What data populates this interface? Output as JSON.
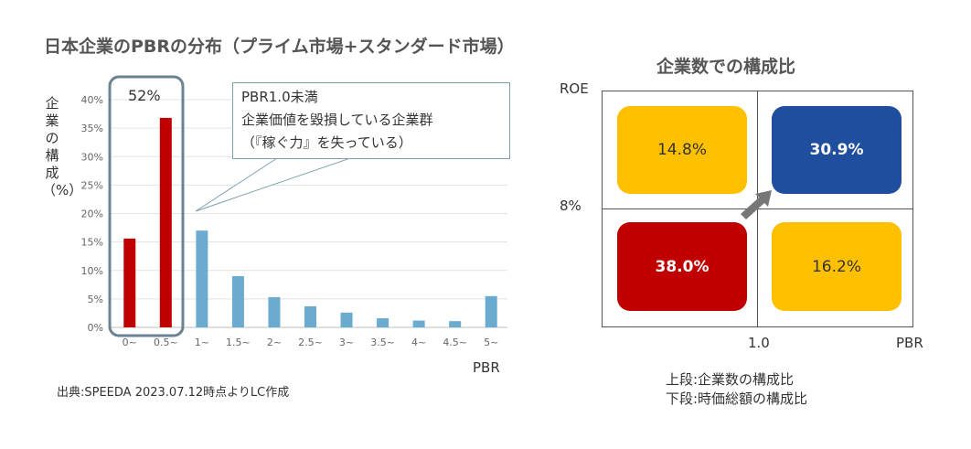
{
  "title": "日本企業のPBRの分布（プライム市場+スタンダード市場）",
  "source": "出典:SPEEDA 2023.07.12時点よりLC作成",
  "highlight": {
    "label": "52%"
  },
  "callout": {
    "line1": "PBR1.0未満",
    "line2": "企業価値を毀損している企業群",
    "line3": "（『稼ぐ力』を失っている）"
  },
  "chart_data": {
    "type": "bar",
    "categories": [
      "0~",
      "0.5~",
      "1~",
      "1.5~",
      "2~",
      "2.5~",
      "3~",
      "3.5~",
      "4~",
      "4.5~",
      "5~"
    ],
    "values": [
      15.6,
      36.8,
      17.0,
      9.0,
      5.3,
      3.7,
      2.6,
      1.6,
      1.2,
      1.1,
      5.5
    ],
    "bar_colors": [
      "#c00000",
      "#c00000",
      "#6aabcf",
      "#6aabcf",
      "#6aabcf",
      "#6aabcf",
      "#6aabcf",
      "#6aabcf",
      "#6aabcf",
      "#6aabcf",
      "#6aabcf"
    ],
    "xlabel": "PBR",
    "ylabel": "企業の構成（%）",
    "ylim": [
      0,
      40
    ],
    "yticks": [
      "0%",
      "5%",
      "10%",
      "15%",
      "20%",
      "25%",
      "30%",
      "35%",
      "40%"
    ],
    "grid": true
  },
  "matrix": {
    "title": "企業数での構成比",
    "y_axis_label": "ROE",
    "y_threshold": "8%",
    "x_threshold": "1.0",
    "x_axis_label": "PBR",
    "cells": {
      "top_left": "14.8%",
      "top_right": "30.9%",
      "bottom_left": "38.0%",
      "bottom_right": "16.2%"
    },
    "colors": {
      "yellow": "#ffc000",
      "blue": "#1f4e9e",
      "red": "#c00000",
      "arrow": "#777777"
    }
  },
  "legend": {
    "line1": "上段:企業数の構成比",
    "line2": "下段:時価総額の構成比"
  }
}
